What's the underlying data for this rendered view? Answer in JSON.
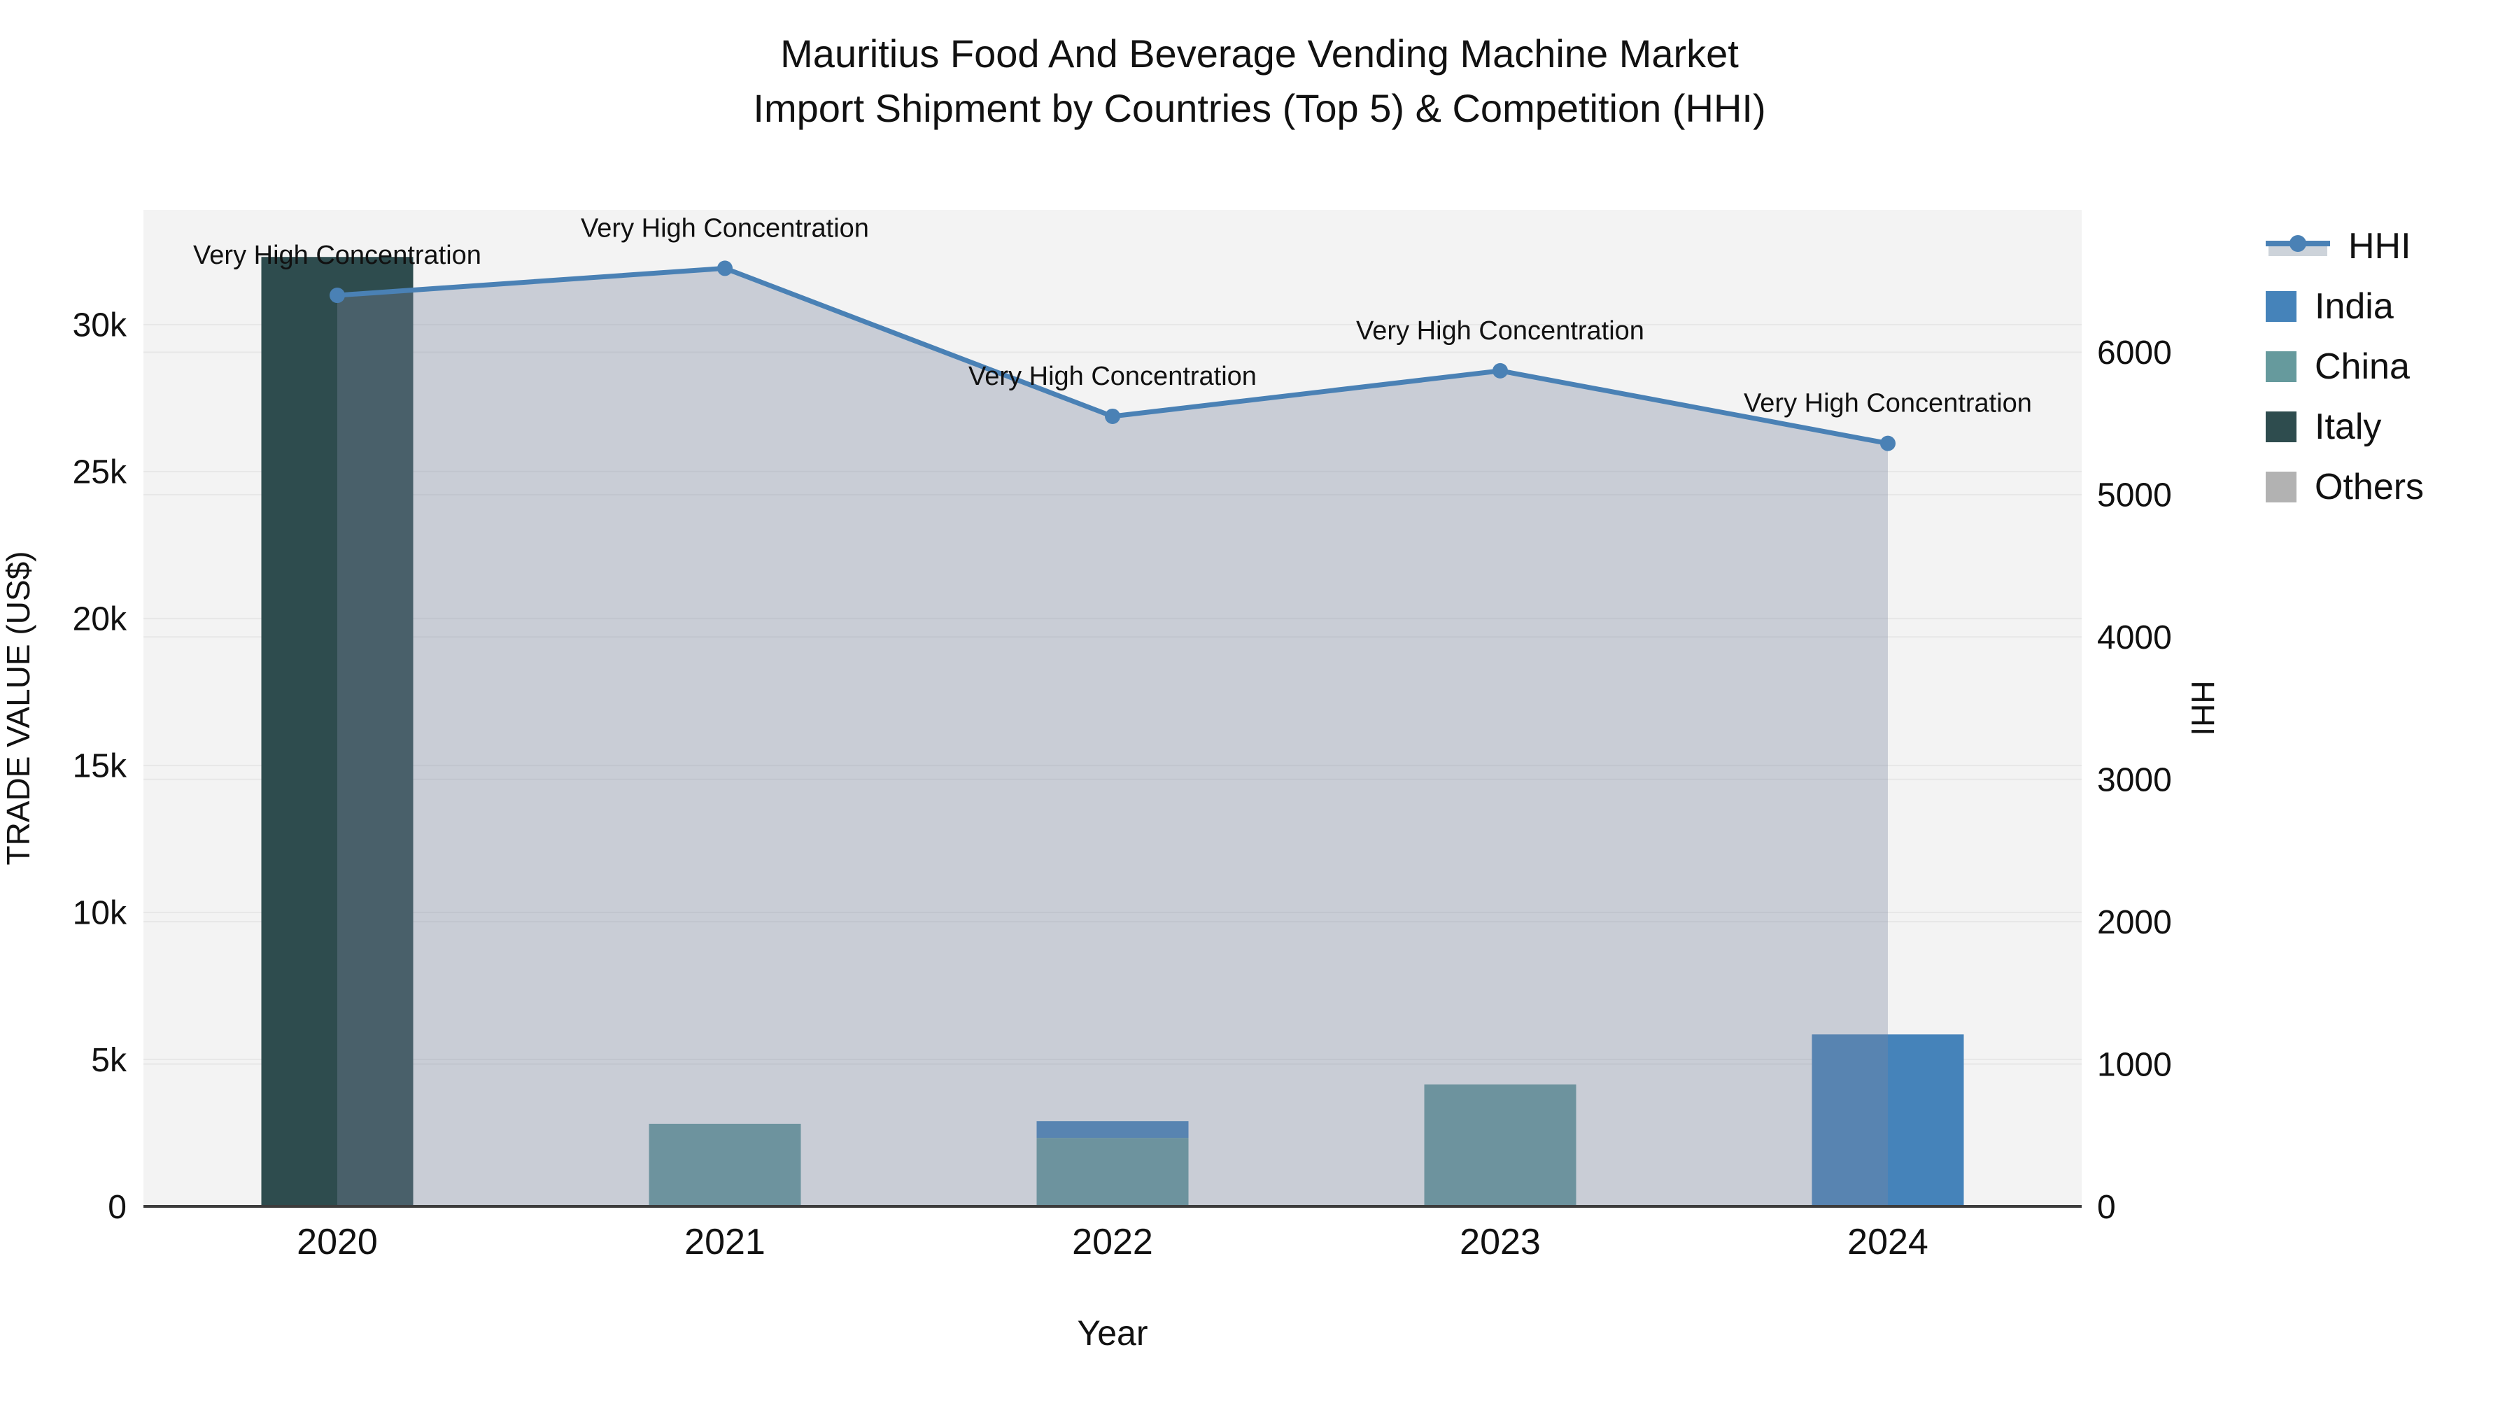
{
  "title": {
    "line1": "Mauritius Food And Beverage Vending Machine Market",
    "line2": "Import Shipment by Countries (Top 5) & Competition (HHI)"
  },
  "chart_data": {
    "type": "bar+line-dual-axis",
    "categories": [
      "2020",
      "2021",
      "2022",
      "2023",
      "2024"
    ],
    "xlabel": "Year",
    "left_axis": {
      "label": "TRADE VALUE (US$)",
      "ticks": [
        0,
        5000,
        10000,
        15000,
        20000,
        25000,
        30000
      ],
      "tick_labels": [
        "0",
        "5k",
        "10k",
        "15k",
        "20k",
        "25k",
        "30k"
      ],
      "max": 33900
    },
    "right_axis": {
      "label": "HHI",
      "ticks": [
        0,
        1000,
        2000,
        3000,
        4000,
        5000,
        6000
      ],
      "tick_labels": [
        "0",
        "1000",
        "2000",
        "3000",
        "4000",
        "5000",
        "6000"
      ],
      "max": 7000
    },
    "bar_series": [
      {
        "name": "India",
        "color": "#4583ba",
        "values": [
          0,
          0,
          570,
          0,
          5850
        ]
      },
      {
        "name": "China",
        "color": "#669a9d",
        "values": [
          0,
          2810,
          2330,
          4150,
          0
        ]
      },
      {
        "name": "Italy",
        "color": "#2e4c4e",
        "values": [
          32300,
          0,
          0,
          0,
          0
        ]
      },
      {
        "name": "Others",
        "color": "#b2b2b2",
        "values": [
          0,
          0,
          0,
          0,
          0
        ]
      }
    ],
    "stack_order": [
      "Italy",
      "China",
      "India",
      "Others"
    ],
    "line_series": {
      "name": "HHI",
      "color": "#4a81b5",
      "fill_color": "rgba(122,135,160,0.35)",
      "legend_band_color": "#cdd3da",
      "values": [
        6400,
        6590,
        5550,
        5870,
        5360
      ]
    },
    "annotations": [
      "Very High Concentration",
      "Very High Concentration",
      "Very High Concentration",
      "Very High Concentration",
      "Very High Concentration"
    ],
    "legend_entries": [
      "HHI",
      "India",
      "China",
      "Italy",
      "Others"
    ],
    "plot_bg": "#f3f3f3",
    "grid_color": "#e7e7e7",
    "axis_line_color": "#3c3c3c",
    "text_color": "#111111"
  }
}
